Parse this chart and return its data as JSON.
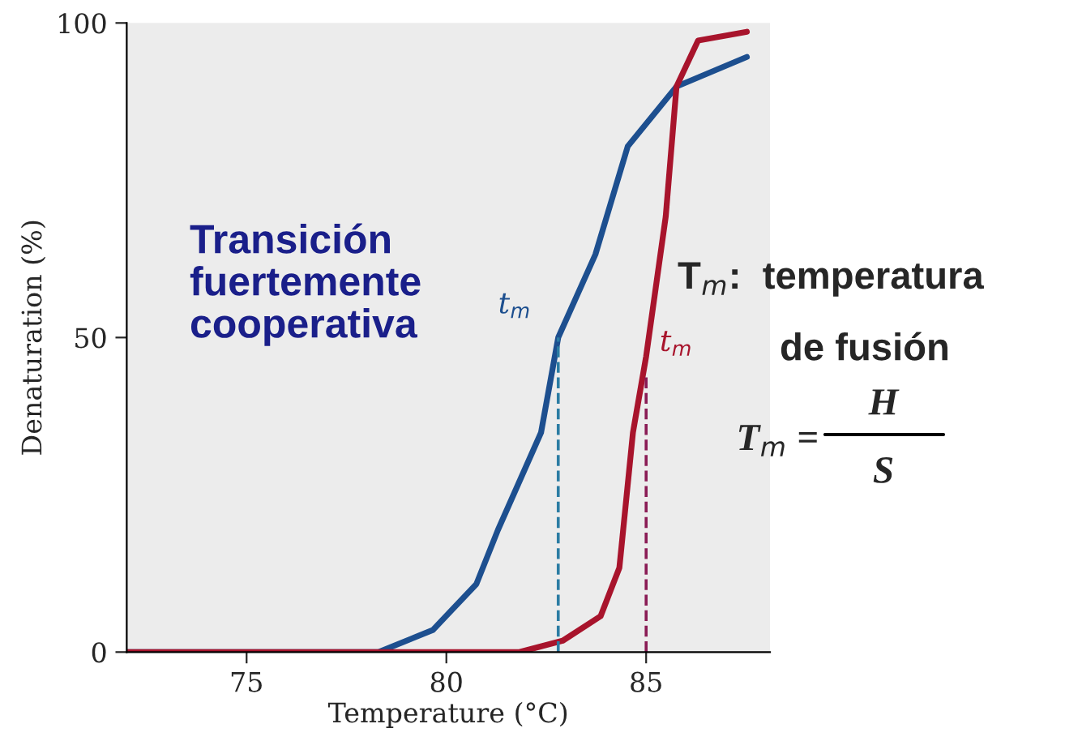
{
  "chart_data": {
    "type": "line",
    "xlabel": "Temperature (°C)",
    "ylabel": "Denaturation (%)",
    "xlim": [
      72,
      88.1
    ],
    "ylim": [
      0,
      100
    ],
    "xticks": [
      75,
      80,
      85
    ],
    "yticks": [
      0,
      50,
      100
    ],
    "grid": false,
    "legend": false,
    "marker": "none",
    "series": [
      {
        "color": "#1d4f8f",
        "line_style": "solid",
        "x": [
          72,
          78.3,
          79.66,
          80.75,
          81.29,
          82.37,
          82.8,
          83.73,
          84.54,
          85.76,
          87.52
        ],
        "values": [
          0,
          0,
          3.5,
          10.8,
          19.4,
          34.9,
          50,
          63.2,
          80.4,
          89.9,
          94.6
        ]
      },
      {
        "color": "#a8142c",
        "line_style": "solid",
        "x": [
          72,
          81.83,
          82.91,
          83.86,
          84.33,
          84.67,
          85.0,
          85.49,
          85.76,
          86.3,
          87.52
        ],
        "values": [
          0,
          0,
          1.8,
          5.7,
          13.4,
          34.9,
          47,
          69.2,
          89.9,
          97.2,
          98.6
        ]
      },
      {
        "color": "#2b7ca3",
        "line_style": "dashed",
        "x": [
          82.8,
          82.8
        ],
        "values": [
          0,
          50
        ]
      },
      {
        "color": "#8a1c55",
        "line_style": "dashed",
        "x": [
          85.0,
          85.0
        ],
        "values": [
          0,
          44
        ]
      }
    ],
    "annotations": [
      "Transición\nfuertemente\ncooperativa",
      {
        "text": "t$_{m}$",
        "x": 82.8,
        "y": 50
      },
      {
        "text": "t$_{m}$",
        "x": 85.0,
        "y": 44
      },
      "T$_{m}$:  temperatura",
      "de fusión",
      "T$_{m}$ =",
      "H",
      "S"
    ]
  }
}
